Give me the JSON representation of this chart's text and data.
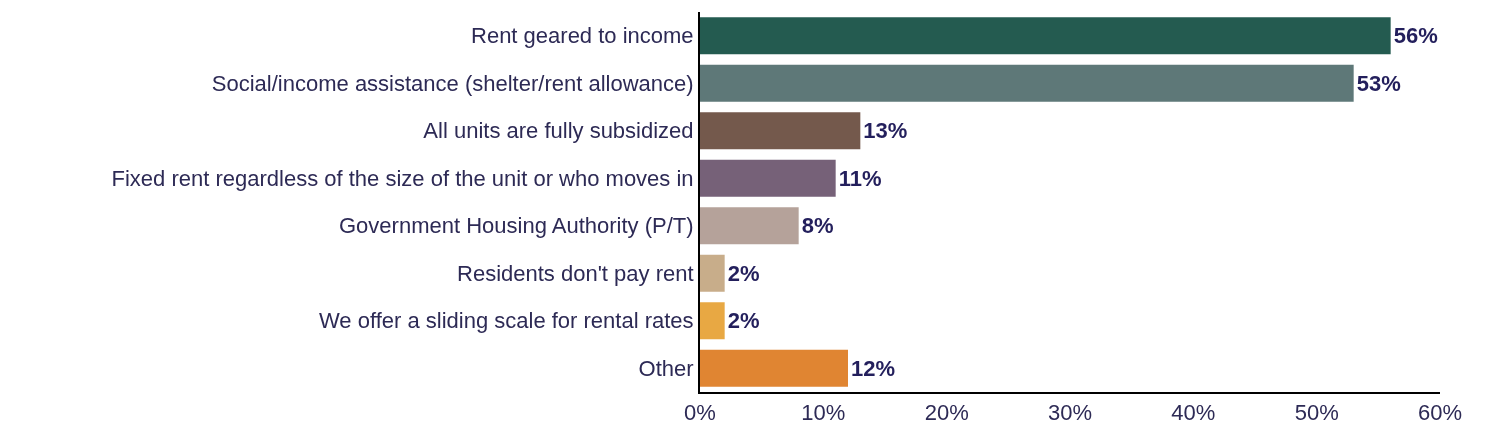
{
  "chart_data": {
    "type": "bar",
    "orientation": "horizontal",
    "categories": [
      "Rent geared to income",
      "Social/income assistance (shelter/rent allowance)",
      "All units are fully subsidized",
      "Fixed rent regardless of the size of the unit or who moves in",
      "Government Housing Authority (P/T)",
      "Residents don't pay rent",
      "We offer a sliding scale for rental rates",
      "Other"
    ],
    "values": [
      56,
      53,
      13,
      11,
      8,
      2,
      2,
      12
    ],
    "colors": [
      "#245b50",
      "#5e7878",
      "#74594c",
      "#766178",
      "#b5a29a",
      "#c8ad8a",
      "#e8a843",
      "#e08532"
    ],
    "value_labels": [
      "56%",
      "53%",
      "13%",
      "11%",
      "8%",
      "2%",
      "2%",
      "12%"
    ],
    "xlim": [
      0,
      60
    ],
    "xticks": [
      {
        "value": 0,
        "label": "0%"
      },
      {
        "value": 10,
        "label": "10%"
      },
      {
        "value": 20,
        "label": "20%"
      },
      {
        "value": 30,
        "label": "30%"
      },
      {
        "value": 40,
        "label": "40%"
      },
      {
        "value": 50,
        "label": "50%"
      },
      {
        "value": 60,
        "label": "60%"
      }
    ],
    "grid": false,
    "legend": false
  }
}
